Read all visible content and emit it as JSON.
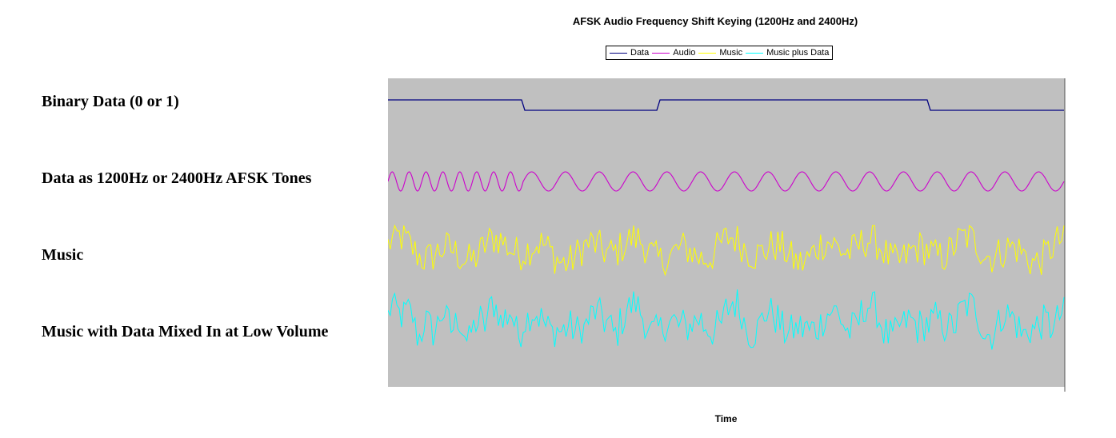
{
  "row_labels": [
    "Binary Data (0 or 1)",
    "Data as 1200Hz or 2400Hz AFSK Tones",
    "Music",
    "Music with Data Mixed In at Low Volume"
  ],
  "chart_data": {
    "type": "line",
    "title": "AFSK Audio Frequency Shift Keying (1200Hz and 2400Hz)",
    "xlabel": "Time",
    "ylabel": "",
    "grid": false,
    "legend_position": "top",
    "background": "#c0c0c0",
    "bits": [
      {
        "value": 1,
        "x_start": 0,
        "x_end": 0.2
      },
      {
        "value": 0,
        "x_start": 0.2,
        "x_end": 0.4
      },
      {
        "value": 1,
        "x_start": 0.4,
        "x_end": 0.8
      },
      {
        "value": 0,
        "x_start": 0.8,
        "x_end": 1.0
      }
    ],
    "tone_cycles_per_segment": {
      "1": 8,
      "0": 4
    },
    "series": [
      {
        "name": "Data",
        "color": "#000080"
      },
      {
        "name": "Audio",
        "color": "#cc00cc"
      },
      {
        "name": "Music",
        "color": "#ffff00"
      },
      {
        "name": "Music plus Data",
        "color": "#00ffff"
      }
    ]
  }
}
